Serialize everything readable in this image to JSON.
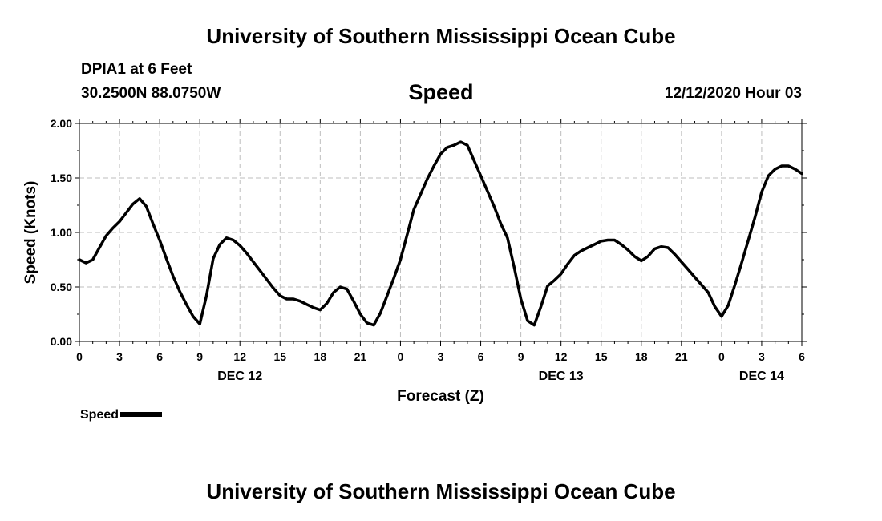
{
  "header": {
    "top_title": "University of Southern Mississippi Ocean Cube",
    "bottom_title": "University of Southern Mississippi Ocean Cube",
    "station": "DPIA1 at 6 Feet",
    "coords": "30.2500N 88.0750W",
    "datetime": "12/12/2020 Hour 03"
  },
  "chart_data": {
    "type": "line",
    "title": "Speed",
    "xlabel": "Forecast (Z)",
    "ylabel": "Speed (Knots)",
    "ylim": [
      0,
      2
    ],
    "xlim": [
      0,
      54
    ],
    "grid": true,
    "y_ticks": [
      "0.00",
      "0.50",
      "1.00",
      "1.50",
      "2.00"
    ],
    "x_ticks": [
      "0",
      "3",
      "6",
      "9",
      "12",
      "15",
      "18",
      "21",
      "0",
      "3",
      "6",
      "9",
      "12",
      "15",
      "18",
      "21",
      "0",
      "3",
      "6"
    ],
    "date_labels": [
      {
        "label": "DEC 12",
        "hour": 12
      },
      {
        "label": "DEC 13",
        "hour": 36
      },
      {
        "label": "DEC 14",
        "hour": 51
      }
    ],
    "legend": [
      {
        "name": "Speed"
      }
    ],
    "series": [
      {
        "name": "Speed",
        "x": [
          0,
          0.5,
          1,
          1.5,
          2,
          2.5,
          3,
          3.5,
          4,
          4.5,
          5,
          5.5,
          6,
          6.5,
          7,
          7.5,
          8,
          8.5,
          9,
          9.5,
          10,
          10.5,
          11,
          11.5,
          12,
          12.5,
          13,
          13.5,
          14,
          14.5,
          15,
          15.5,
          16,
          16.5,
          17,
          17.5,
          18,
          18.5,
          19,
          19.5,
          20,
          20.5,
          21,
          21.5,
          22,
          22.5,
          23,
          23.5,
          24,
          24.5,
          25,
          25.5,
          26,
          26.5,
          27,
          27.5,
          28,
          28.5,
          29,
          29.5,
          30,
          30.5,
          31,
          31.5,
          32,
          32.5,
          33,
          33.5,
          34,
          34.5,
          35,
          35.5,
          36,
          36.5,
          37,
          37.5,
          38,
          38.5,
          39,
          39.5,
          40,
          40.5,
          41,
          41.5,
          42,
          42.5,
          43,
          43.5,
          44,
          44.5,
          45,
          45.5,
          46,
          46.5,
          47,
          47.5,
          48,
          48.5,
          49,
          49.5,
          50,
          50.5,
          51,
          51.5,
          52,
          52.5,
          53,
          53.5,
          54
        ],
        "values": [
          0.75,
          0.72,
          0.75,
          0.86,
          0.97,
          1.04,
          1.1,
          1.18,
          1.26,
          1.31,
          1.24,
          1.08,
          0.93,
          0.76,
          0.6,
          0.46,
          0.34,
          0.23,
          0.16,
          0.42,
          0.76,
          0.89,
          0.95,
          0.93,
          0.88,
          0.81,
          0.73,
          0.65,
          0.57,
          0.49,
          0.42,
          0.39,
          0.39,
          0.37,
          0.34,
          0.31,
          0.29,
          0.35,
          0.45,
          0.5,
          0.48,
          0.37,
          0.25,
          0.17,
          0.15,
          0.26,
          0.42,
          0.58,
          0.75,
          0.98,
          1.21,
          1.35,
          1.49,
          1.61,
          1.72,
          1.78,
          1.8,
          1.83,
          1.8,
          1.66,
          1.52,
          1.38,
          1.24,
          1.08,
          0.95,
          0.68,
          0.39,
          0.19,
          0.15,
          0.32,
          0.51,
          0.56,
          0.62,
          0.71,
          0.79,
          0.83,
          0.86,
          0.89,
          0.92,
          0.93,
          0.93,
          0.89,
          0.84,
          0.78,
          0.74,
          0.78,
          0.85,
          0.87,
          0.86,
          0.8,
          0.73,
          0.66,
          0.59,
          0.52,
          0.45,
          0.32,
          0.23,
          0.33,
          0.52,
          0.72,
          0.93,
          1.14,
          1.37,
          1.52,
          1.58,
          1.61,
          1.61,
          1.58,
          1.54
        ]
      }
    ]
  }
}
